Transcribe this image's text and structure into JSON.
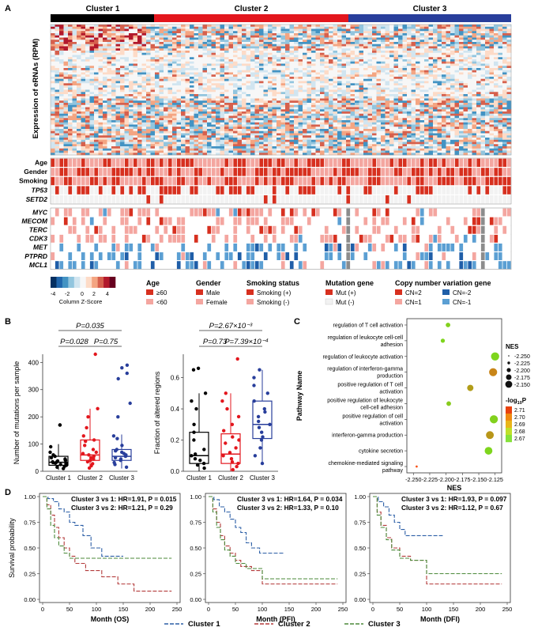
{
  "panels": {
    "a": "A",
    "b": "B",
    "c": "C",
    "d": "D"
  },
  "panel_a": {
    "clusters": [
      "Cluster 1",
      "Cluster 2",
      "Cluster 3"
    ],
    "cluster_colors": [
      "#000000",
      "#e3161d",
      "#283e9b"
    ],
    "ylabel": "Expression of eRNAs (RPM)",
    "clinical_rows": [
      "Age",
      "Gender",
      "Smoking",
      "TP53",
      "SETD2"
    ],
    "cnv_rows": [
      "MYC",
      "MECOM",
      "TERC",
      "CDK3",
      "MET",
      "PTPRD",
      "MCL1"
    ],
    "scale": {
      "ticks": [
        "-4",
        "-2",
        "0",
        "2",
        "4"
      ],
      "label": "Column Z-Score"
    },
    "legends": {
      "age": {
        "title": "Age",
        "items": [
          "≥60",
          "<60"
        ]
      },
      "gender": {
        "title": "Gender",
        "items": [
          "Male",
          "Female"
        ]
      },
      "smoking": {
        "title": "Smoking status",
        "items": [
          "Smoking (+)",
          "Smoking (-)"
        ]
      },
      "mutation": {
        "title": "Mutation gene",
        "items": [
          "Mut (+)",
          "Mut (-)"
        ]
      },
      "cnv": {
        "title": "Copy number variation gene",
        "items": [
          "CN=2",
          "CN=-2",
          "CN=1",
          "CN=-1"
        ]
      }
    },
    "colors": {
      "dark_red": "#d7301f",
      "light_red": "#f4a6a0",
      "pale": "#f2f2f2",
      "dark_blue": "#1f5ea8",
      "light_blue": "#5b9fd3",
      "grey": "#8c8c8c"
    }
  },
  "chart_data": [
    {
      "id": "b-left",
      "type": "box",
      "ylabel": "Number of mutations per sample",
      "categories": [
        "Cluster 1",
        "Cluster 2",
        "Cluster 3"
      ],
      "colors": [
        "#000000",
        "#e3161d",
        "#283e9b"
      ],
      "ylim": [
        0,
        430
      ],
      "yticks": [
        0,
        100,
        200,
        300,
        400
      ],
      "boxes": [
        {
          "q1": 22,
          "median": 33,
          "q3": 55,
          "whisker_low": 5,
          "whisker_high": 100
        },
        {
          "q1": 40,
          "median": 60,
          "q3": 115,
          "whisker_low": 8,
          "whisker_high": 230
        },
        {
          "q1": 40,
          "median": 55,
          "q3": 80,
          "whisker_low": 10,
          "whisker_high": 135
        }
      ],
      "points": [
        [
          10,
          15,
          18,
          22,
          25,
          28,
          30,
          32,
          34,
          35,
          38,
          40,
          42,
          45,
          50,
          55,
          60,
          70,
          90,
          170,
          170
        ],
        [
          12,
          20,
          28,
          35,
          40,
          45,
          50,
          55,
          60,
          65,
          70,
          80,
          95,
          110,
          115,
          130,
          160,
          200,
          230,
          430
        ],
        [
          15,
          25,
          32,
          40,
          45,
          50,
          55,
          60,
          65,
          70,
          75,
          80,
          95,
          120,
          130,
          200,
          250,
          340,
          360,
          380,
          390
        ]
      ],
      "comparisons": [
        {
          "label": "P=0.035",
          "from": 0,
          "to": 2
        },
        {
          "label": "P=0.028",
          "from": 0,
          "to": 1
        },
        {
          "label": "P=0.75",
          "from": 1,
          "to": 2
        }
      ]
    },
    {
      "id": "b-right",
      "type": "box",
      "ylabel": "Fraction of altered regions",
      "categories": [
        "Cluster 1",
        "Cluster 2",
        "Cluster 3"
      ],
      "colors": [
        "#000000",
        "#e3161d",
        "#283e9b"
      ],
      "ylim": [
        0,
        0.75
      ],
      "yticks": [
        0.0,
        0.2,
        0.4,
        0.6
      ],
      "boxes": [
        {
          "q1": 0.05,
          "median": 0.1,
          "q3": 0.25,
          "whisker_low": 0.0,
          "whisker_high": 0.5
        },
        {
          "q1": 0.05,
          "median": 0.11,
          "q3": 0.24,
          "whisker_low": 0.0,
          "whisker_high": 0.5
        },
        {
          "q1": 0.21,
          "median": 0.3,
          "q3": 0.45,
          "whisker_low": 0.05,
          "whisker_high": 0.65
        }
      ],
      "points": [
        [
          0.02,
          0.04,
          0.05,
          0.07,
          0.08,
          0.1,
          0.11,
          0.14,
          0.2,
          0.25,
          0.3,
          0.4,
          0.45,
          0.5,
          0.65,
          0.66
        ],
        [
          0.01,
          0.03,
          0.05,
          0.06,
          0.08,
          0.1,
          0.12,
          0.15,
          0.18,
          0.2,
          0.22,
          0.26,
          0.3,
          0.35,
          0.4,
          0.45,
          0.5,
          0.72
        ],
        [
          0.05,
          0.1,
          0.15,
          0.2,
          0.22,
          0.25,
          0.28,
          0.3,
          0.32,
          0.35,
          0.38,
          0.4,
          0.45,
          0.5,
          0.55,
          0.6,
          0.65
        ]
      ],
      "comparisons": [
        {
          "label": "P=2.67×10⁻³",
          "from": 0,
          "to": 2
        },
        {
          "label": "P=0.73",
          "from": 0,
          "to": 1
        },
        {
          "label": "P=7.39×10⁻⁴",
          "from": 1,
          "to": 2
        }
      ]
    },
    {
      "id": "c",
      "type": "scatter",
      "xlabel": "NES",
      "ylabel": "Pathway Name",
      "xlim": [
        -2.26,
        -2.115
      ],
      "xticks": [
        "-2.250",
        "-2.225",
        "-2.200",
        "-2.175",
        "-2.150",
        "-2.125"
      ],
      "pathways": [
        {
          "name": "regulation of T cell activation",
          "nes": -2.197,
          "logp": 2.673
        },
        {
          "name": "regulation of leukocyte cell-cell adhesion",
          "nes": -2.205,
          "logp": 2.672
        },
        {
          "name": "regulation of leukocyte activation",
          "nes": -2.125,
          "logp": 2.672
        },
        {
          "name": "regulation of interferon-gamma production",
          "nes": -2.128,
          "logp": 2.695
        },
        {
          "name": "positive regulation of T cell activation",
          "nes": -2.163,
          "logp": 2.688
        },
        {
          "name": "positive regulation of leukocyte cell-cell adhesion",
          "nes": -2.196,
          "logp": 2.675
        },
        {
          "name": "positive regulation of cell activation",
          "nes": -2.127,
          "logp": 2.673
        },
        {
          "name": "interferon-gamma production",
          "nes": -2.133,
          "logp": 2.69
        },
        {
          "name": "cytokine secretion",
          "nes": -2.135,
          "logp": 2.672
        },
        {
          "name": "chemokine-mediated signaling pathway",
          "nes": -2.245,
          "logp": 2.71
        }
      ],
      "legend_nes": {
        "title": "NES",
        "items": [
          "-2.250",
          "-2.225",
          "-2.200",
          "-2.175",
          "-2.150"
        ]
      },
      "legend_p": {
        "title": "-log",
        "sub": "10",
        "tail": "P",
        "items": [
          "2.71",
          "2.70",
          "2.69",
          "2.68",
          "2.67"
        ]
      }
    },
    {
      "id": "d1",
      "type": "line",
      "xlabel": "Month (OS)",
      "ylabel": "Survival probability",
      "xticks": [
        0,
        50,
        100,
        150,
        200,
        250
      ],
      "yticks": [
        "0.00",
        "0.25",
        "0.50",
        "0.75",
        "1.00"
      ],
      "annotations": [
        "Cluster 3 vs 1: HR=1.91, P = 0.015",
        "Cluster 3 vs 2: HR=1.21, P = 0.29"
      ],
      "series": [
        {
          "name": "Cluster 1",
          "color": "#2b5ea6",
          "points": [
            [
              0,
              1
            ],
            [
              10,
              0.98
            ],
            [
              20,
              0.95
            ],
            [
              30,
              0.88
            ],
            [
              40,
              0.85
            ],
            [
              50,
              0.75
            ],
            [
              60,
              0.72
            ],
            [
              75,
              0.62
            ],
            [
              90,
              0.5
            ],
            [
              100,
              0.5
            ],
            [
              110,
              0.42
            ],
            [
              150,
              0.42
            ]
          ]
        },
        {
          "name": "Cluster 2",
          "color": "#b33a3a",
          "points": [
            [
              0,
              1
            ],
            [
              8,
              0.92
            ],
            [
              15,
              0.82
            ],
            [
              22,
              0.7
            ],
            [
              30,
              0.6
            ],
            [
              40,
              0.5
            ],
            [
              50,
              0.42
            ],
            [
              60,
              0.35
            ],
            [
              80,
              0.28
            ],
            [
              110,
              0.22
            ],
            [
              140,
              0.15
            ],
            [
              170,
              0.08
            ],
            [
              240,
              0.08
            ]
          ]
        },
        {
          "name": "Cluster 3",
          "color": "#4b8a3a",
          "points": [
            [
              0,
              1
            ],
            [
              8,
              0.88
            ],
            [
              15,
              0.72
            ],
            [
              22,
              0.6
            ],
            [
              30,
              0.52
            ],
            [
              40,
              0.45
            ],
            [
              50,
              0.4
            ],
            [
              240,
              0.4
            ]
          ]
        }
      ]
    },
    {
      "id": "d2",
      "type": "line",
      "xlabel": "Month (PFI)",
      "ylabel": "",
      "xticks": [
        0,
        50,
        100,
        150,
        200,
        250
      ],
      "yticks": [
        "0.00",
        "0.25",
        "0.50",
        "0.75",
        "1.00"
      ],
      "annotations": [
        "Cluster 3 vs 1: HR=1.64, P = 0.034",
        "Cluster 3 vs 2: HR=1.33, P = 0.10"
      ],
      "series": [
        {
          "name": "Cluster 1",
          "color": "#2b5ea6",
          "points": [
            [
              0,
              1
            ],
            [
              10,
              0.97
            ],
            [
              20,
              0.9
            ],
            [
              30,
              0.85
            ],
            [
              40,
              0.78
            ],
            [
              50,
              0.7
            ],
            [
              60,
              0.65
            ],
            [
              70,
              0.55
            ],
            [
              80,
              0.5
            ],
            [
              95,
              0.45
            ],
            [
              140,
              0.45
            ]
          ]
        },
        {
          "name": "Cluster 2",
          "color": "#b33a3a",
          "points": [
            [
              0,
              1
            ],
            [
              8,
              0.88
            ],
            [
              15,
              0.75
            ],
            [
              22,
              0.62
            ],
            [
              30,
              0.52
            ],
            [
              40,
              0.45
            ],
            [
              50,
              0.38
            ],
            [
              60,
              0.32
            ],
            [
              80,
              0.28
            ],
            [
              100,
              0.15
            ],
            [
              240,
              0.15
            ]
          ]
        },
        {
          "name": "Cluster 3",
          "color": "#4b8a3a",
          "points": [
            [
              0,
              1
            ],
            [
              8,
              0.85
            ],
            [
              15,
              0.7
            ],
            [
              22,
              0.58
            ],
            [
              30,
              0.48
            ],
            [
              40,
              0.42
            ],
            [
              50,
              0.35
            ],
            [
              70,
              0.3
            ],
            [
              100,
              0.2
            ],
            [
              240,
              0.2
            ]
          ]
        }
      ]
    },
    {
      "id": "d3",
      "type": "line",
      "xlabel": "Month (DFI)",
      "ylabel": "",
      "xticks": [
        0,
        50,
        100,
        150,
        200,
        250
      ],
      "yticks": [
        "0.00",
        "0.25",
        "0.50",
        "0.75",
        "1.00"
      ],
      "annotations": [
        "Cluster 3 vs 1: HR=1.93, P = 0.097",
        "Cluster 3 vs 2: HR=1.12, P = 0.67"
      ],
      "series": [
        {
          "name": "Cluster 1",
          "color": "#2b5ea6",
          "points": [
            [
              0,
              1
            ],
            [
              10,
              0.95
            ],
            [
              20,
              0.9
            ],
            [
              30,
              0.82
            ],
            [
              40,
              0.75
            ],
            [
              50,
              0.68
            ],
            [
              60,
              0.62
            ],
            [
              130,
              0.62
            ]
          ]
        },
        {
          "name": "Cluster 2",
          "color": "#b33a3a",
          "points": [
            [
              0,
              1
            ],
            [
              8,
              0.85
            ],
            [
              15,
              0.72
            ],
            [
              25,
              0.6
            ],
            [
              35,
              0.5
            ],
            [
              50,
              0.42
            ],
            [
              70,
              0.38
            ],
            [
              100,
              0.15
            ],
            [
              240,
              0.15
            ]
          ]
        },
        {
          "name": "Cluster 3",
          "color": "#4b8a3a",
          "points": [
            [
              0,
              1
            ],
            [
              8,
              0.82
            ],
            [
              15,
              0.7
            ],
            [
              25,
              0.58
            ],
            [
              35,
              0.48
            ],
            [
              50,
              0.4
            ],
            [
              70,
              0.38
            ],
            [
              100,
              0.25
            ],
            [
              240,
              0.25
            ]
          ]
        }
      ]
    }
  ],
  "km_legend": [
    "Cluster 1",
    "Cluster 2",
    "Cluster 3"
  ]
}
